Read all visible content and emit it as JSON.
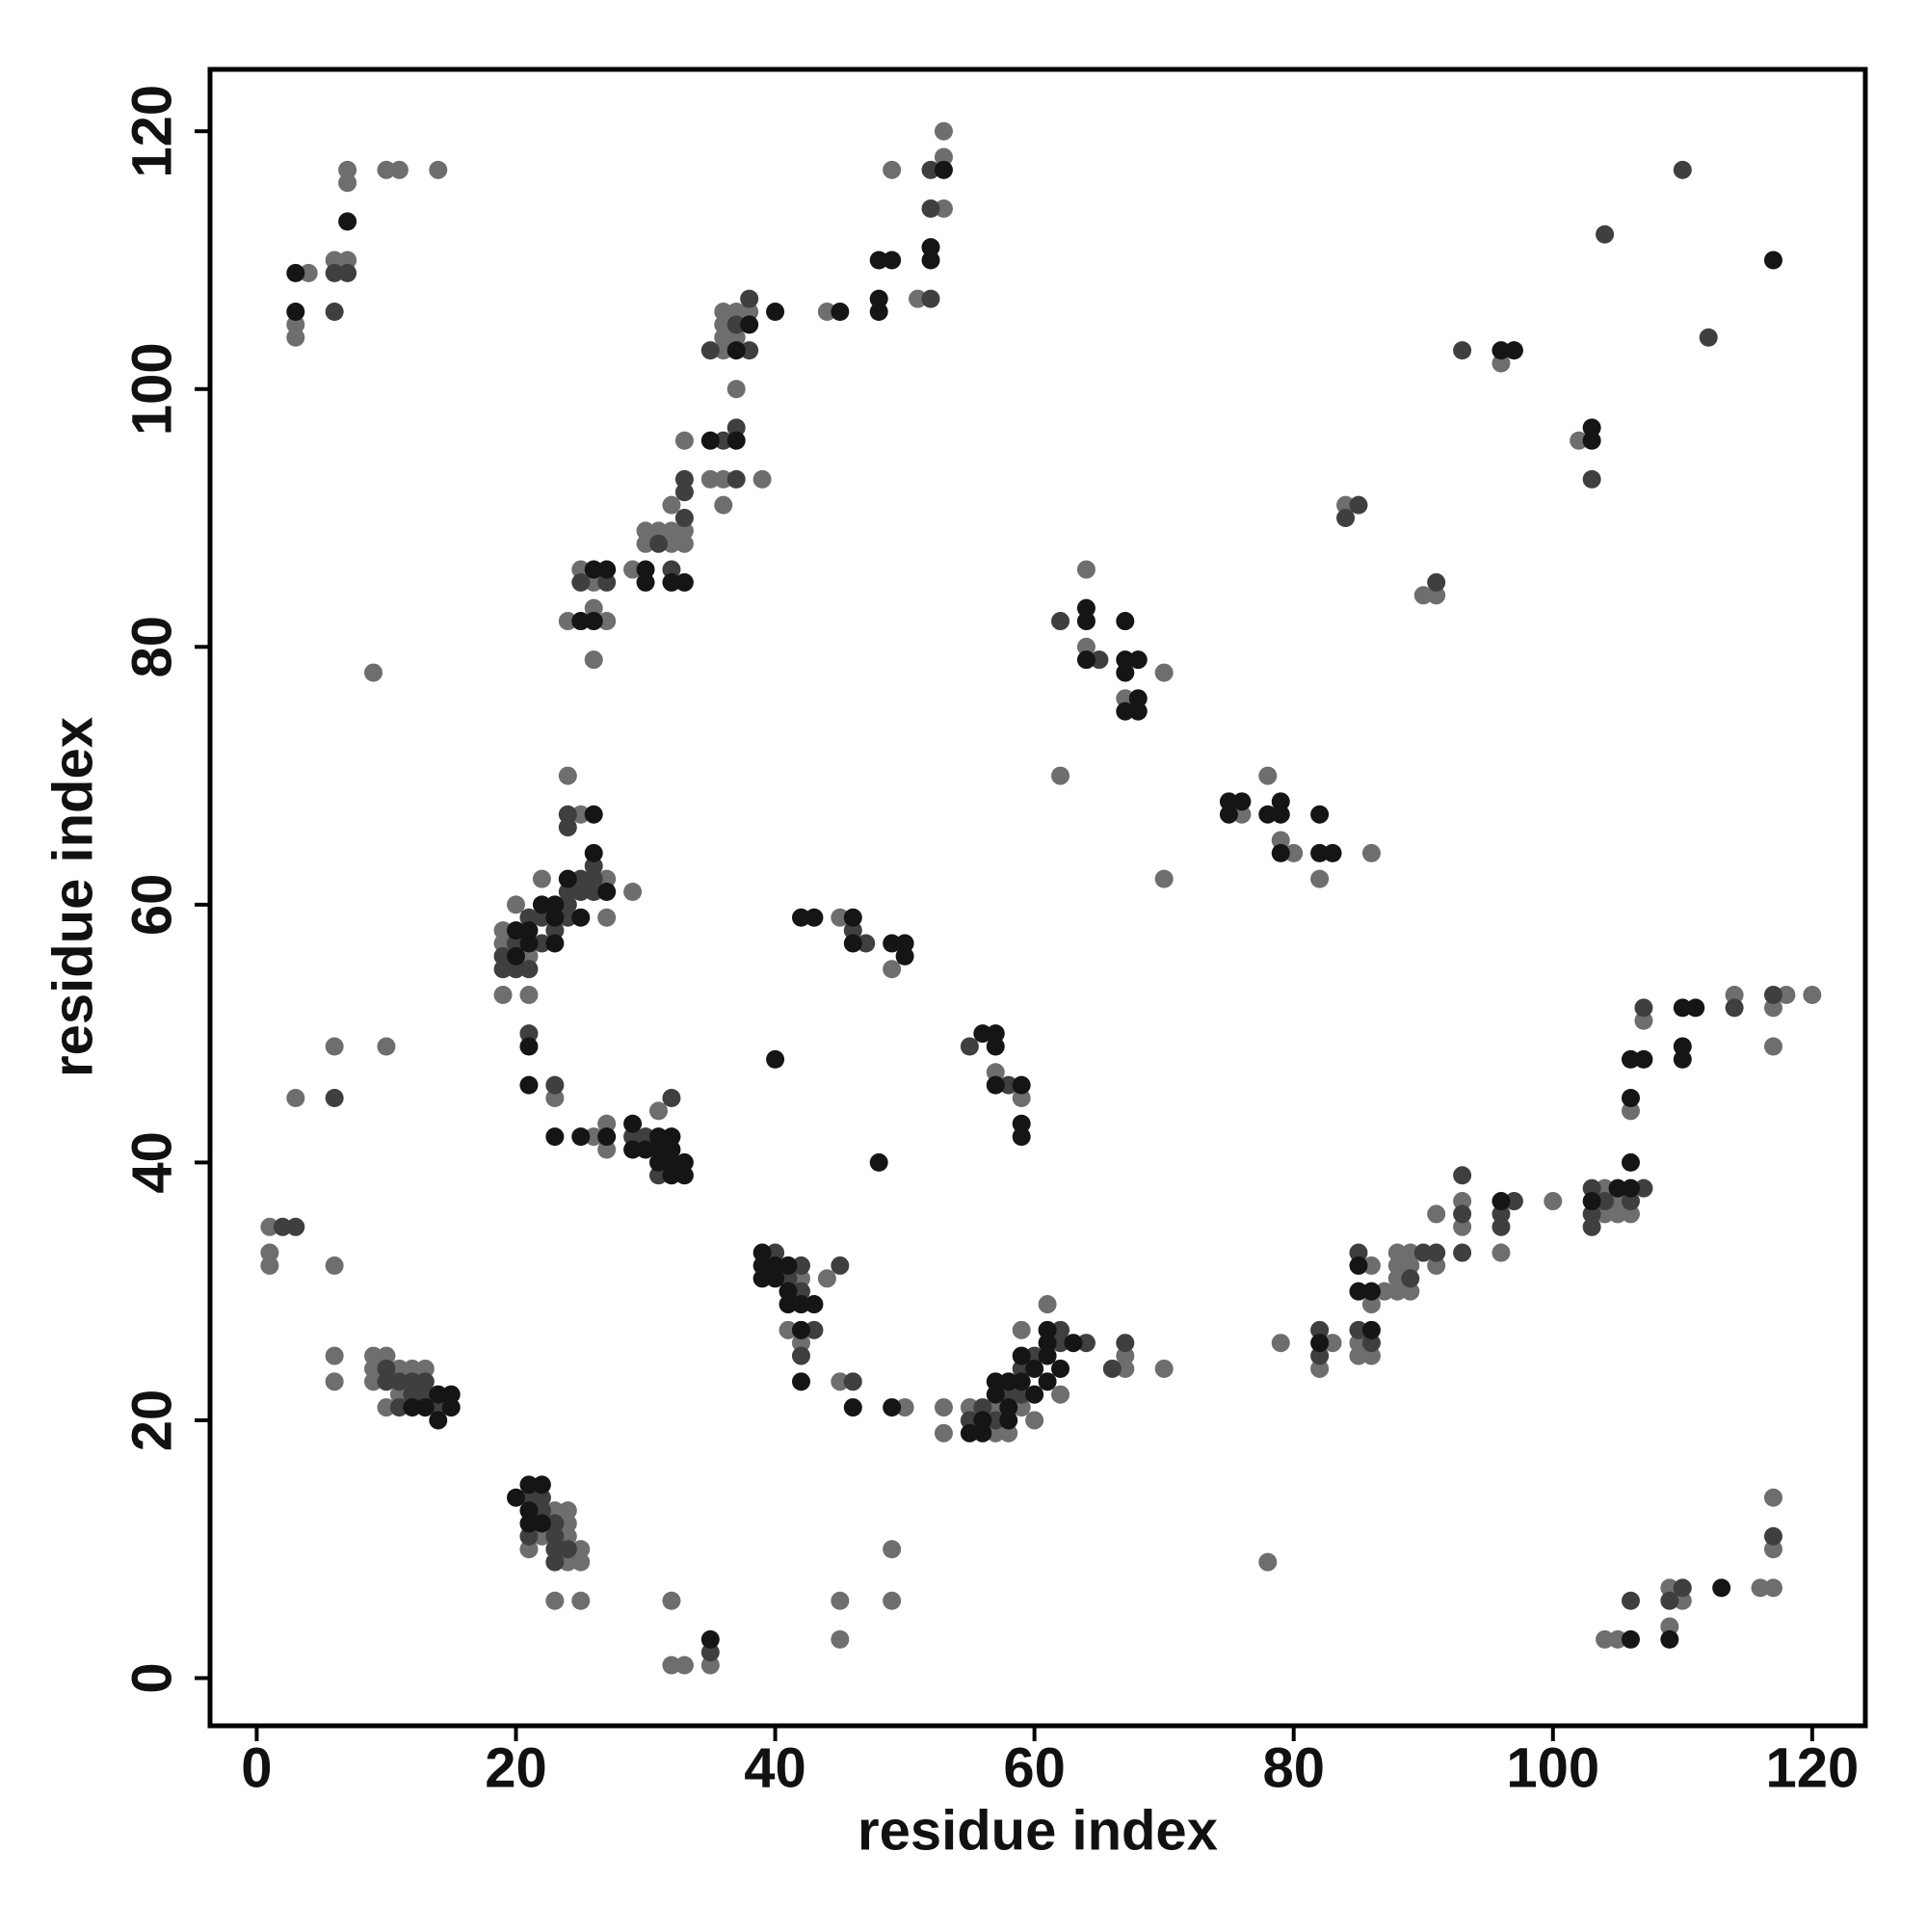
{
  "chart_data": {
    "type": "scatter",
    "xlabel": "residue index",
    "ylabel": "residue index",
    "xlim": [
      -3.6,
      124.1
    ],
    "ylim": [
      -3.7,
      124.8
    ],
    "xticks": [
      0,
      20,
      40,
      60,
      80,
      100,
      120
    ],
    "yticks": [
      0,
      20,
      40,
      60,
      80,
      100,
      120
    ],
    "series": [
      {
        "color": "#6e6e6e",
        "x": [
          4,
          3,
          3,
          6,
          7,
          7,
          7,
          10,
          11,
          14,
          1,
          1,
          1,
          6,
          3,
          6,
          10,
          9,
          6,
          6,
          9,
          10,
          9,
          9,
          11,
          12,
          13,
          10,
          11,
          23,
          24,
          22,
          24,
          21,
          24,
          25,
          24,
          25,
          23,
          25,
          32,
          32,
          33,
          35,
          45,
          45,
          49,
          49,
          19,
          19,
          19,
          20,
          21,
          21,
          22,
          24,
          25,
          27,
          27,
          29,
          23,
          26,
          27,
          27,
          31,
          41,
          42,
          42,
          44,
          45,
          50,
          53,
          53,
          55,
          57,
          57,
          58,
          59,
          59,
          60,
          61,
          62,
          67,
          67,
          70,
          45,
          49,
          57,
          59,
          24,
          25,
          26,
          26,
          26,
          27,
          29,
          30,
          30,
          31,
          32,
          32,
          32,
          33,
          33,
          33,
          35,
          36,
          36,
          37,
          39,
          36,
          36,
          36,
          36,
          37,
          37,
          38,
          44,
          49,
          51,
          53,
          53,
          53,
          62,
          64,
          64,
          67,
          70,
          76,
          78,
          79,
          80,
          82,
          86,
          70,
          78,
          79,
          82,
          83,
          85,
          85,
          86,
          86,
          86,
          87,
          88,
          88,
          88,
          88,
          89,
          89,
          89,
          91,
          91,
          93,
          93,
          96,
          100,
          104,
          104,
          105,
          105,
          106,
          106,
          107,
          114,
          117,
          118,
          117,
          120,
          84,
          90,
          91,
          96,
          102,
          104,
          105,
          109,
          109,
          110,
          116,
          117,
          117,
          117
        ],
        "values": [
          109,
          105,
          104,
          110,
          110,
          117,
          116,
          117,
          117,
          117,
          35,
          33,
          32,
          32,
          45,
          49,
          49,
          78,
          25,
          23,
          25,
          25,
          24,
          23,
          24,
          24,
          24,
          21,
          22,
          13,
          13,
          11,
          12,
          10,
          11,
          10,
          9,
          9,
          6,
          6,
          6,
          1,
          1,
          1,
          6,
          3,
          10,
          6,
          53,
          57,
          58,
          60,
          56,
          53,
          62,
          70,
          67,
          62,
          59,
          61,
          45,
          42,
          43,
          41,
          44,
          27,
          31,
          26,
          31,
          23,
          21,
          21,
          19,
          21,
          21,
          19,
          19,
          27,
          21,
          20,
          29,
          22,
          24,
          25,
          24,
          59,
          55,
          47,
          45,
          82,
          86,
          85,
          83,
          79,
          82,
          86,
          88,
          89,
          89,
          89,
          88,
          91,
          89,
          96,
          88,
          93,
          93,
          91,
          100,
          93,
          103,
          104,
          105,
          106,
          106,
          104,
          106,
          106,
          117,
          107,
          118,
          114,
          120,
          70,
          86,
          80,
          76,
          78,
          67,
          70,
          65,
          64,
          62,
          64,
          62,
          9,
          26,
          24,
          26,
          26,
          25,
          32,
          29,
          25,
          30,
          33,
          32,
          31,
          30,
          33,
          32,
          30,
          32,
          36,
          37,
          35,
          33,
          37,
          38,
          36,
          37,
          36,
          36,
          44,
          51,
          53,
          52,
          53,
          49,
          53,
          91,
          84,
          84,
          102,
          96,
          3,
          3,
          7,
          4,
          6,
          7,
          7,
          14,
          10
        ]
      },
      {
        "color": "#3f3f3f",
        "x": [
          6,
          6,
          7,
          2,
          3,
          6,
          10,
          10,
          11,
          12,
          13,
          11,
          12,
          13,
          14,
          21,
          22,
          22,
          21,
          23,
          23,
          23,
          24,
          23,
          35,
          19,
          19,
          20,
          20,
          21,
          21,
          21,
          22,
          22,
          23,
          24,
          24,
          24,
          24,
          24,
          25,
          25,
          26,
          26,
          26,
          23,
          29,
          30,
          32,
          31,
          40,
          41,
          42,
          42,
          42,
          43,
          45,
          46,
          55,
          56,
          57,
          58,
          59,
          59,
          60,
          62,
          62,
          64,
          66,
          67,
          46,
          47,
          55,
          58,
          25,
          27,
          32,
          31,
          33,
          33,
          33,
          36,
          37,
          37,
          35,
          37,
          38,
          38,
          52,
          52,
          52,
          62,
          65,
          82,
          82,
          85,
          85,
          86,
          89,
          90,
          91,
          93,
          93,
          93,
          96,
          96,
          97,
          103,
          103,
          103,
          104,
          106,
          107,
          107,
          114,
          117,
          84,
          85,
          91,
          93,
          103,
          104,
          110,
          112,
          106,
          109,
          110,
          117
        ],
        "values": [
          106,
          109,
          109,
          35,
          35,
          45,
          23,
          24,
          23,
          23,
          23,
          21,
          22,
          22,
          21,
          14,
          14,
          13,
          11,
          12,
          11,
          10,
          10,
          9,
          2,
          55,
          56,
          55,
          57,
          55,
          59,
          50,
          57,
          59,
          58,
          59,
          60,
          61,
          66,
          67,
          61,
          62,
          61,
          62,
          63,
          46,
          42,
          42,
          45,
          39,
          33,
          31,
          32,
          30,
          25,
          27,
          32,
          23,
          20,
          21,
          20,
          22,
          24,
          22,
          25,
          27,
          26,
          26,
          24,
          26,
          58,
          57,
          49,
          46,
          85,
          85,
          86,
          88,
          90,
          92,
          93,
          96,
          97,
          93,
          103,
          105,
          103,
          107,
          107,
          114,
          117,
          82,
          79,
          27,
          25,
          33,
          27,
          26,
          31,
          33,
          33,
          39,
          36,
          33,
          36,
          35,
          37,
          38,
          36,
          35,
          37,
          37,
          38,
          52,
          52,
          53,
          90,
          91,
          85,
          103,
          93,
          112,
          117,
          104,
          6,
          6,
          7,
          11
        ]
      },
      {
        "color": "#151515",
        "x": [
          3,
          3,
          7,
          12,
          13,
          14,
          15,
          15,
          14,
          20,
          21,
          22,
          21,
          21,
          22,
          35,
          20,
          20,
          21,
          21,
          21,
          21,
          22,
          23,
          23,
          23,
          24,
          25,
          26,
          26,
          27,
          23,
          25,
          27,
          29,
          29,
          30,
          31,
          31,
          31,
          32,
          32,
          32,
          32,
          33,
          33,
          40,
          48,
          39,
          39,
          39,
          40,
          40,
          41,
          41,
          41,
          42,
          42,
          42,
          43,
          46,
          49,
          55,
          56,
          56,
          57,
          57,
          58,
          58,
          58,
          59,
          59,
          60,
          60,
          61,
          61,
          61,
          61,
          62,
          63,
          42,
          43,
          46,
          46,
          49,
          50,
          50,
          56,
          57,
          57,
          57,
          59,
          59,
          59,
          25,
          26,
          26,
          27,
          30,
          30,
          32,
          33,
          35,
          37,
          37,
          38,
          40,
          45,
          48,
          48,
          48,
          49,
          52,
          52,
          53,
          64,
          64,
          64,
          67,
          67,
          67,
          68,
          68,
          67,
          68,
          75,
          75,
          76,
          78,
          79,
          79,
          79,
          82,
          82,
          83,
          82,
          85,
          85,
          86,
          86,
          96,
          103,
          105,
          106,
          106,
          106,
          106,
          107,
          110,
          111,
          110,
          110,
          96,
          97,
          103,
          103,
          117,
          106,
          109,
          113
        ],
        "values": [
          109,
          106,
          113,
          21,
          21,
          22,
          22,
          21,
          20,
          14,
          15,
          15,
          13,
          12,
          12,
          3,
          56,
          58,
          57,
          58,
          49,
          46,
          60,
          57,
          60,
          59,
          62,
          59,
          64,
          67,
          61,
          42,
          42,
          42,
          43,
          41,
          41,
          42,
          41,
          40,
          42,
          41,
          40,
          39,
          40,
          39,
          48,
          40,
          33,
          32,
          31,
          32,
          31,
          32,
          30,
          29,
          29,
          27,
          23,
          29,
          21,
          21,
          19,
          20,
          19,
          22,
          23,
          23,
          21,
          20,
          23,
          25,
          22,
          24,
          26,
          27,
          23,
          25,
          24,
          26,
          59,
          59,
          59,
          57,
          57,
          57,
          56,
          50,
          50,
          49,
          46,
          46,
          43,
          42,
          82,
          86,
          82,
          86,
          86,
          85,
          85,
          85,
          96,
          96,
          103,
          105,
          106,
          106,
          106,
          107,
          110,
          110,
          110,
          111,
          117,
          83,
          82,
          79,
          82,
          79,
          78,
          79,
          76,
          75,
          75,
          68,
          67,
          68,
          67,
          68,
          67,
          64,
          67,
          64,
          64,
          26,
          32,
          30,
          30,
          27,
          37,
          37,
          38,
          38,
          40,
          45,
          48,
          48,
          52,
          52,
          49,
          48,
          103,
          103,
          97,
          96,
          110,
          3,
          3,
          7
        ]
      }
    ]
  }
}
